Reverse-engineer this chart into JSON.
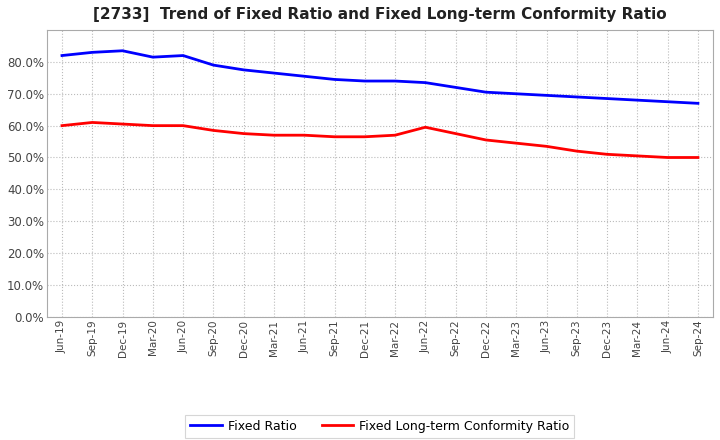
{
  "title": "[2733]  Trend of Fixed Ratio and Fixed Long-term Conformity Ratio",
  "title_fontsize": 11,
  "x_labels": [
    "Jun-19",
    "Sep-19",
    "Dec-19",
    "Mar-20",
    "Jun-20",
    "Sep-20",
    "Dec-20",
    "Mar-21",
    "Jun-21",
    "Sep-21",
    "Dec-21",
    "Mar-22",
    "Jun-22",
    "Sep-22",
    "Dec-22",
    "Mar-23",
    "Jun-23",
    "Sep-23",
    "Dec-23",
    "Mar-24",
    "Jun-24",
    "Sep-24"
  ],
  "fixed_ratio": [
    82.0,
    83.0,
    83.5,
    81.5,
    82.0,
    79.0,
    77.5,
    76.5,
    75.5,
    74.5,
    74.0,
    74.0,
    73.5,
    72.0,
    70.5,
    70.0,
    69.5,
    69.0,
    68.5,
    68.0,
    67.5,
    67.0
  ],
  "fixed_lt_ratio": [
    60.0,
    61.0,
    60.5,
    60.0,
    60.0,
    58.5,
    57.5,
    57.0,
    57.0,
    56.5,
    56.5,
    57.0,
    59.5,
    57.5,
    55.5,
    54.5,
    53.5,
    52.0,
    51.0,
    50.5,
    50.0,
    50.0
  ],
  "fixed_ratio_color": "#0000ff",
  "fixed_lt_ratio_color": "#ff0000",
  "ylim": [
    0,
    90
  ],
  "yticks": [
    0,
    10,
    20,
    30,
    40,
    50,
    60,
    70,
    80
  ],
  "background_color": "#ffffff",
  "grid_color": "#bbbbbb",
  "legend_fixed_ratio": "Fixed Ratio",
  "legend_fixed_lt_ratio": "Fixed Long-term Conformity Ratio"
}
